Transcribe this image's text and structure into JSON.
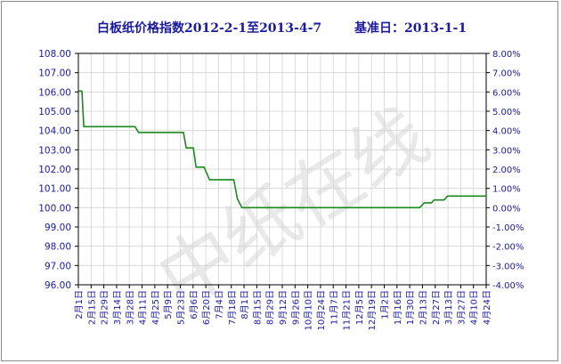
{
  "chart_data": {
    "type": "line",
    "title": "白板纸价格指数2012-2-1至2013-4-7",
    "base_label": "基准日：2013-1-1",
    "watermark": "中纸在线",
    "y_left": {
      "min": 96,
      "max": 108,
      "step": 1,
      "ticks": [
        "108.00",
        "107.00",
        "106.00",
        "105.00",
        "104.00",
        "103.00",
        "102.00",
        "101.00",
        "100.00",
        "99.00",
        "98.00",
        "97.00",
        "96.00"
      ]
    },
    "y_right": {
      "min": -4,
      "max": 8,
      "step": 1,
      "ticks": [
        "8.00%",
        "7.00%",
        "6.00%",
        "5.00%",
        "4.00%",
        "3.00%",
        "2.00%",
        "1.00%",
        "0.00%",
        "-1.00%",
        "-2.00%",
        "-3.00%",
        "-4.00%"
      ]
    },
    "x_ticks": [
      "2月1日",
      "2月15日",
      "2月29日",
      "3月14日",
      "3月28日",
      "4月11日",
      "4月25日",
      "5月9日",
      "5月23日",
      "6月6日",
      "6月20日",
      "7月4日",
      "7月18日",
      "8月1日",
      "8月15日",
      "8月29日",
      "9月12日",
      "9月26日",
      "10月10日",
      "10月24日",
      "11月7日",
      "11月21日",
      "12月5日",
      "12月19日",
      "1月2日",
      "1月16日",
      "1月30日",
      "2月13日",
      "2月27日",
      "3月13日",
      "3月27日",
      "4月10日",
      "4月24日"
    ],
    "series": [
      {
        "color": "#1a8a1a",
        "points": [
          [
            "2012-02-01",
            106.05
          ],
          [
            "2012-02-05",
            106.05
          ],
          [
            "2012-02-07",
            104.2
          ],
          [
            "2012-04-04",
            104.2
          ],
          [
            "2012-04-08",
            103.9
          ],
          [
            "2012-05-28",
            103.9
          ],
          [
            "2012-05-31",
            103.1
          ],
          [
            "2012-06-08",
            103.1
          ],
          [
            "2012-06-11",
            102.1
          ],
          [
            "2012-06-20",
            102.1
          ],
          [
            "2012-06-26",
            101.45
          ],
          [
            "2012-07-23",
            101.45
          ],
          [
            "2012-07-27",
            100.45
          ],
          [
            "2012-08-01",
            100.0
          ],
          [
            "2013-02-15",
            100.0
          ],
          [
            "2013-02-20",
            100.25
          ],
          [
            "2013-02-28",
            100.25
          ],
          [
            "2013-03-03",
            100.4
          ],
          [
            "2013-03-14",
            100.4
          ],
          [
            "2013-03-18",
            100.6
          ],
          [
            "2013-04-30",
            100.6
          ]
        ]
      }
    ],
    "grid": true
  }
}
